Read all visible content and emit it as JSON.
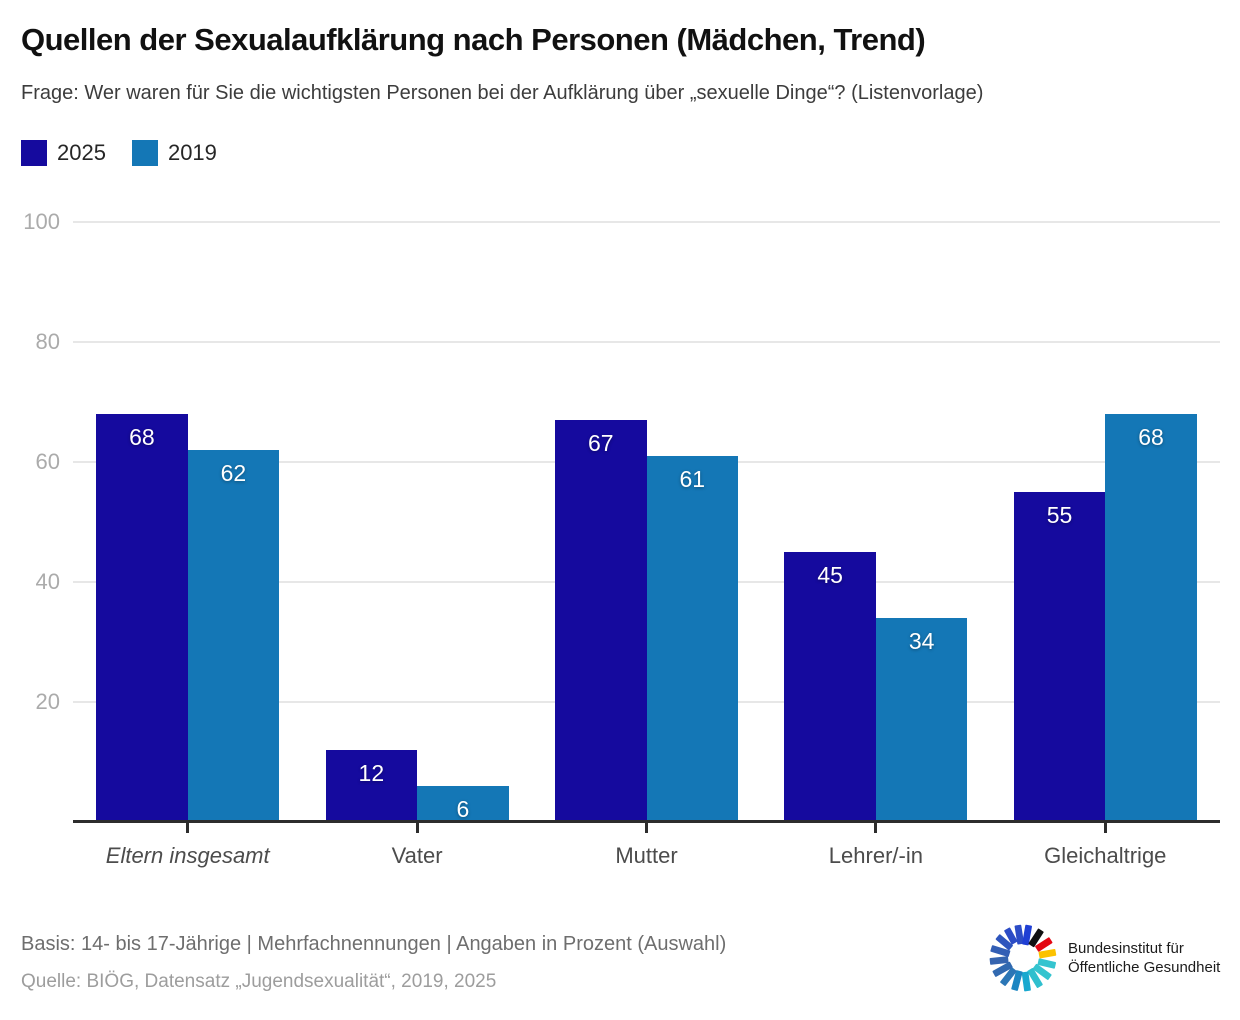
{
  "title": "Quellen der Sexualaufklärung nach Personen (Mädchen, Trend)",
  "subtitle": "Frage: Wer waren für Sie die wichtigsten Personen bei der Aufklärung über „sexuelle Dinge“? (Listenvorlage)",
  "legend": [
    {
      "label": "2025",
      "color": "#150a9e"
    },
    {
      "label": "2019",
      "color": "#1477b6"
    }
  ],
  "chart_data": {
    "type": "bar",
    "categories": [
      "Eltern insgesamt",
      "Vater",
      "Mutter",
      "Lehrer/-in",
      "Gleichaltrige"
    ],
    "categories_italic": [
      "Eltern insgesamt"
    ],
    "series": [
      {
        "name": "2025",
        "color": "#150a9e",
        "values": [
          68,
          12,
          67,
          45,
          55
        ]
      },
      {
        "name": "2019",
        "color": "#1477b6",
        "values": [
          62,
          6,
          61,
          34,
          68
        ]
      }
    ],
    "title": "Quellen der Sexualaufklärung nach Personen (Mädchen, Trend)",
    "xlabel": "",
    "ylabel": "",
    "ylim": [
      0,
      100
    ],
    "yticks": [
      20,
      40,
      60,
      80,
      100
    ],
    "grid": true,
    "legend_position": "top-left",
    "value_labels": true,
    "unit": "Prozent"
  },
  "footer": {
    "basis": "Basis: 14- bis 17-Jährige | Mehrfachnennungen | Angaben in Prozent (Auswahl)",
    "quelle": "Quelle: BIÖG, Datensatz „Jugendsexualität“, 2019, 2025"
  },
  "logo": {
    "line1": "Bundesinstitut für",
    "line2": "Öffentliche Gesundheit",
    "segments": [
      {
        "angle": 351,
        "color": "#2c4cc6",
        "len": 26
      },
      {
        "angle": 10,
        "color": "#1f3fd4",
        "len": 27
      },
      {
        "angle": 33,
        "color": "#101010",
        "len": 25
      },
      {
        "angle": 57,
        "color": "#e30613",
        "len": 23
      },
      {
        "angle": 80,
        "color": "#fcc200",
        "len": 23
      },
      {
        "angle": 103,
        "color": "#35c4cf",
        "len": 24
      },
      {
        "angle": 126,
        "color": "#35c4cf",
        "len": 26
      },
      {
        "angle": 149,
        "color": "#2fbfce",
        "len": 27
      },
      {
        "angle": 172,
        "color": "#19a8cf",
        "len": 26
      },
      {
        "angle": 195,
        "color": "#1d86c2",
        "len": 27
      },
      {
        "angle": 218,
        "color": "#2b76b6",
        "len": 26
      },
      {
        "angle": 241,
        "color": "#3169b0",
        "len": 27
      },
      {
        "angle": 264,
        "color": "#3564af",
        "len": 25
      },
      {
        "angle": 287,
        "color": "#335fb5",
        "len": 26
      },
      {
        "angle": 310,
        "color": "#2e55bd",
        "len": 24
      },
      {
        "angle": 331,
        "color": "#2c4cc6",
        "len": 22
      }
    ]
  }
}
